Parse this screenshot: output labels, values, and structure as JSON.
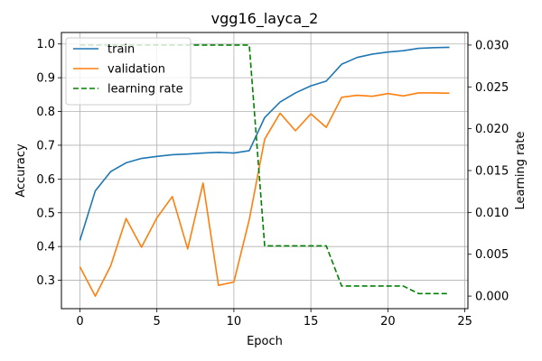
{
  "chart_data": {
    "type": "line",
    "title": "vgg16_layca_2",
    "xlabel": "Epoch",
    "ylabel": "Accuracy",
    "y2label": "Learning rate",
    "x": [
      0,
      1,
      2,
      3,
      4,
      5,
      6,
      7,
      8,
      9,
      10,
      11,
      12,
      13,
      14,
      15,
      16,
      17,
      18,
      19,
      20,
      21,
      22,
      23,
      24
    ],
    "xlim": [
      -1.2,
      25.2
    ],
    "ylim": [
      0.216,
      1.034
    ],
    "y2lim": [
      -0.0015,
      0.0315
    ],
    "x_ticks": [
      0,
      5,
      10,
      15,
      20,
      25
    ],
    "y_ticks": [
      0.3,
      0.4,
      0.5,
      0.6,
      0.7,
      0.8,
      0.9,
      1.0
    ],
    "y2_ticks": [
      0.0,
      0.005,
      0.01,
      0.015,
      0.02,
      0.025,
      0.03
    ],
    "grid": true,
    "legend_position": "top-left",
    "series": [
      {
        "name": "train",
        "axis": "left",
        "color": "#1f77b4",
        "dash": "solid",
        "values": [
          0.418,
          0.565,
          0.622,
          0.648,
          0.661,
          0.667,
          0.672,
          0.674,
          0.677,
          0.679,
          0.677,
          0.684,
          0.782,
          0.828,
          0.855,
          0.876,
          0.89,
          0.94,
          0.96,
          0.97,
          0.976,
          0.98,
          0.987,
          0.989,
          0.99
        ]
      },
      {
        "name": "validation",
        "axis": "left",
        "color": "#ff7f0e",
        "dash": "solid",
        "values": [
          0.34,
          0.253,
          0.343,
          0.483,
          0.398,
          0.485,
          0.548,
          0.393,
          0.588,
          0.285,
          0.295,
          0.48,
          0.718,
          0.795,
          0.743,
          0.793,
          0.753,
          0.842,
          0.848,
          0.845,
          0.853,
          0.846,
          0.855,
          0.855,
          0.854
        ]
      },
      {
        "name": "learning rate",
        "axis": "right",
        "color": "#008000",
        "dash": "dashed",
        "values": [
          0.03,
          0.03,
          0.03,
          0.03,
          0.03,
          0.03,
          0.03,
          0.03,
          0.03,
          0.03,
          0.03,
          0.03,
          0.006,
          0.006,
          0.006,
          0.006,
          0.006,
          0.0012,
          0.0012,
          0.0012,
          0.0012,
          0.0012,
          0.0003,
          0.0003,
          0.0003
        ]
      }
    ]
  }
}
